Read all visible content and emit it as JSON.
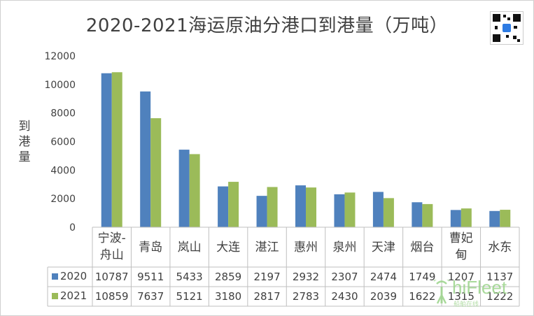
{
  "chart_data": {
    "type": "bar",
    "title": "2020-2021海运原油分港口到港量（万吨）",
    "ylabel": "到港量",
    "ylim": [
      0,
      12000
    ],
    "yticks": [
      "0",
      "2000",
      "4000",
      "6000",
      "8000",
      "10000",
      "12000"
    ],
    "categories": [
      "宁波-舟山",
      "青岛",
      "岚山",
      "大连",
      "湛江",
      "惠州",
      "泉州",
      "天津",
      "烟台",
      "曹妃甸",
      "水东"
    ],
    "category_lines": [
      [
        "宁波-",
        "舟山"
      ],
      [
        "青岛"
      ],
      [
        "岚山"
      ],
      [
        "大连"
      ],
      [
        "湛江"
      ],
      [
        "惠州"
      ],
      [
        "泉州"
      ],
      [
        "天津"
      ],
      [
        "烟台"
      ],
      [
        "曹妃",
        "甸"
      ],
      [
        "水东"
      ]
    ],
    "series": [
      {
        "name": "2020",
        "color": "#4f81bd",
        "values": [
          10787,
          9511,
          5433,
          2859,
          2197,
          2932,
          2307,
          2474,
          1749,
          1207,
          1137
        ]
      },
      {
        "name": "2021",
        "color": "#9bbb59",
        "values": [
          10859,
          7637,
          5121,
          3180,
          2817,
          2783,
          2430,
          2039,
          1622,
          1315,
          1222
        ]
      }
    ],
    "grid": false,
    "legend": "data-table"
  },
  "watermark": {
    "text": "hiFleet",
    "sub": "船舶在线"
  }
}
